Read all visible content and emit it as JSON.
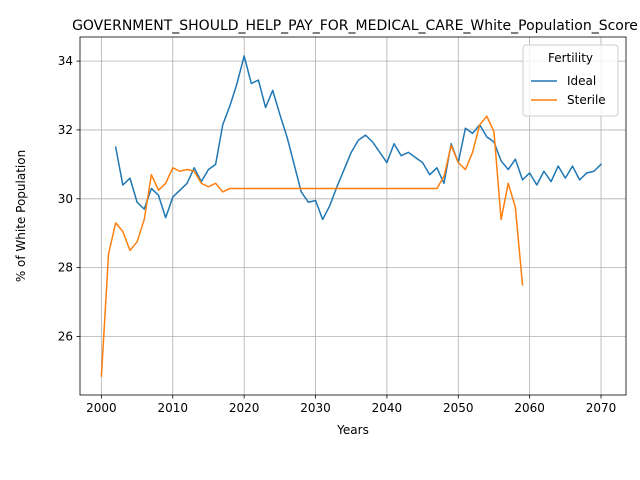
{
  "chart_data": {
    "type": "line",
    "title": "GOVERNMENT_SHOULD_HELP_PAY_FOR_MEDICAL_CARE_White_Population_Score",
    "xlabel": "Years",
    "ylabel": "% of White Population",
    "xlim": [
      1997,
      2073.5
    ],
    "ylim": [
      24.3,
      34.7
    ],
    "xticks": [
      2000,
      2010,
      2020,
      2030,
      2040,
      2050,
      2060,
      2070
    ],
    "yticks": [
      26,
      28,
      30,
      32,
      34
    ],
    "grid": true,
    "legend": {
      "title": "Fertility",
      "position": "top-right"
    },
    "series": [
      {
        "name": "Ideal",
        "color": "#1f77b4",
        "x": [
          2002,
          2003,
          2004,
          2005,
          2006,
          2007,
          2008,
          2009,
          2010,
          2011,
          2012,
          2013,
          2014,
          2015,
          2016,
          2017,
          2018,
          2019,
          2020,
          2021,
          2022,
          2023,
          2024,
          2025,
          2026,
          2027,
          2028,
          2029,
          2030,
          2031,
          2032,
          2033,
          2034,
          2035,
          2036,
          2037,
          2038,
          2039,
          2040,
          2041,
          2042,
          2043,
          2044,
          2045,
          2046,
          2047,
          2048,
          2049,
          2050,
          2051,
          2052,
          2053,
          2054,
          2055,
          2056,
          2057,
          2058,
          2059,
          2060,
          2061,
          2062,
          2063,
          2064,
          2065,
          2066,
          2067,
          2068,
          2069,
          2070
        ],
        "values": [
          31.5,
          30.4,
          30.6,
          29.9,
          29.7,
          30.3,
          30.1,
          29.45,
          30.05,
          30.25,
          30.45,
          30.9,
          30.5,
          30.85,
          31.0,
          32.15,
          32.7,
          33.35,
          34.15,
          33.35,
          33.45,
          32.65,
          33.15,
          32.45,
          31.8,
          31.0,
          30.2,
          29.9,
          29.95,
          29.4,
          29.8,
          30.35,
          30.85,
          31.35,
          31.7,
          31.85,
          31.65,
          31.35,
          31.05,
          31.6,
          31.25,
          31.35,
          31.2,
          31.05,
          30.7,
          30.9,
          30.45,
          31.6,
          31.05,
          32.05,
          31.9,
          32.15,
          31.8,
          31.65,
          31.1,
          30.85,
          31.15,
          30.55,
          30.75,
          30.4,
          30.8,
          30.5,
          30.95,
          30.6,
          30.95,
          30.55,
          30.75,
          30.8,
          31.0
        ]
      },
      {
        "name": "Sterile",
        "color": "#ff7f0e",
        "x": [
          2000,
          2001,
          2002,
          2003,
          2004,
          2005,
          2006,
          2007,
          2008,
          2009,
          2010,
          2011,
          2012,
          2013,
          2014,
          2015,
          2016,
          2017,
          2018,
          2019,
          2020,
          2021,
          2022,
          2023,
          2024,
          2025,
          2026,
          2027,
          2028,
          2029,
          2030,
          2031,
          2032,
          2033,
          2034,
          2035,
          2036,
          2037,
          2038,
          2039,
          2040,
          2041,
          2042,
          2043,
          2044,
          2045,
          2046,
          2047,
          2048,
          2049,
          2050,
          2051,
          2052,
          2053,
          2054,
          2055,
          2056,
          2057,
          2058,
          2059
        ],
        "values": [
          24.85,
          28.4,
          29.3,
          29.05,
          28.5,
          28.75,
          29.4,
          30.7,
          30.25,
          30.45,
          30.9,
          30.8,
          30.85,
          30.8,
          30.45,
          30.35,
          30.45,
          30.2,
          30.3,
          30.3,
          30.3,
          30.3,
          30.3,
          30.3,
          30.3,
          30.3,
          30.3,
          30.3,
          30.3,
          30.3,
          30.3,
          30.3,
          30.3,
          30.3,
          30.3,
          30.3,
          30.3,
          30.3,
          30.3,
          30.3,
          30.3,
          30.3,
          30.3,
          30.3,
          30.3,
          30.3,
          30.3,
          30.3,
          30.65,
          31.55,
          31.05,
          30.85,
          31.35,
          32.15,
          32.4,
          31.95,
          29.4,
          30.45,
          29.75,
          27.5
        ]
      }
    ]
  }
}
